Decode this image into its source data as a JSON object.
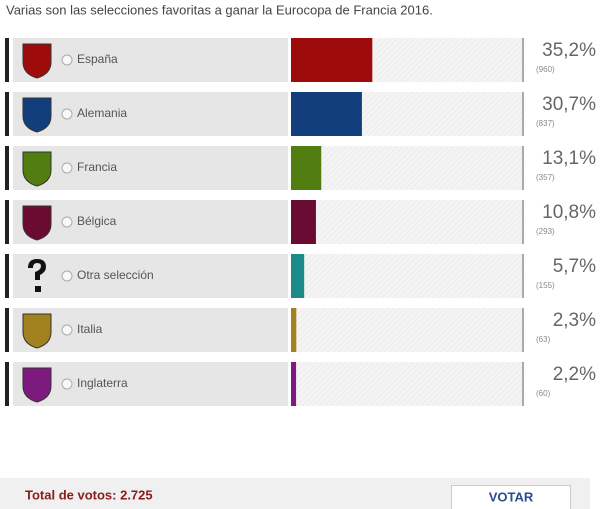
{
  "poll": {
    "question": "Varias son las selecciones favoritas a ganar la Eurocopa de Francia 2016.",
    "options": [
      "España",
      "Alemania",
      "Francia",
      "Bélgica",
      "Otra selección",
      "Italia",
      "Inglaterra"
    ],
    "values": [
      35.2,
      30.7,
      13.1,
      10.8,
      5.7,
      2.3,
      2.2
    ],
    "value_labels": [
      "35,2%",
      "30,7%",
      "13,1%",
      "10,8%",
      "5,7%",
      "2,3%",
      "2,2%"
    ],
    "votes": [
      960,
      837,
      357,
      293,
      155,
      63,
      60
    ],
    "vote_labels": [
      "(960)",
      "(837)",
      "(357)",
      "(293)",
      "(155)",
      "(63)",
      "(60)"
    ],
    "colors": [
      "#9e0b0b",
      "#123f7c",
      "#527d10",
      "#6b0b31",
      "#1b8b89",
      "#a2821e",
      "#7d1a7d"
    ],
    "xlim": [
      0,
      100
    ],
    "total": "Total de votos: 2.725",
    "button": "VOTAR"
  }
}
